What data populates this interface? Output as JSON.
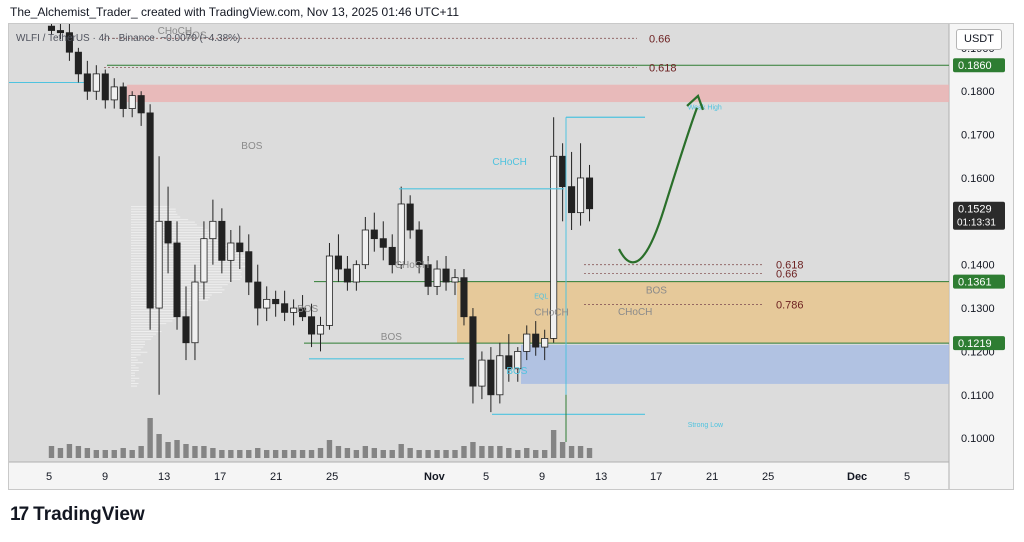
{
  "header": {
    "text": "The_Alchemist_Trader_ created with TradingView.com, Nov 13, 2025 01:46 UTC+11"
  },
  "symbol": {
    "pair": "WLFI / TetherUS · 4h · Binance",
    "change": "−0.0070 (−4.38%)"
  },
  "currency_button": "USDT",
  "footer": {
    "logo_text": "TradingView",
    "logo_icon": "tradingview-logo-icon"
  },
  "colors": {
    "bg": "#dcdcdc",
    "candle": "#222222",
    "green_line": "#2e7d32",
    "fib_text": "#6b1f1f",
    "cyan": "#4fc3df",
    "supply_zone": "#eab4b4",
    "demand_orange": "#e8c58e",
    "demand_blue": "#a9bde3",
    "arrow": "#2a6f2a",
    "volume": "#4a4a4a"
  },
  "chart_data": {
    "type": "candlestick",
    "ylim": [
      0.0945,
      0.1955
    ],
    "y_ticks": [
      "0.1900",
      "0.1800",
      "0.1700",
      "0.1600",
      "0.1400",
      "0.1300",
      "0.1200",
      "0.1100",
      "0.1000"
    ],
    "x_ticks": [
      "5",
      "9",
      "13",
      "17",
      "21",
      "25",
      "Nov",
      "5",
      "9",
      "13",
      "17",
      "21",
      "25",
      "Dec",
      "5"
    ],
    "price_labels": [
      {
        "text": "0.1860",
        "price": 0.186,
        "style": "green"
      },
      {
        "text": "0.1529",
        "sub": "01:13:31",
        "price": 0.1529,
        "style": "dark"
      },
      {
        "text": "0.1361",
        "price": 0.1361,
        "style": "green"
      },
      {
        "text": "0.1219",
        "price": 0.1219,
        "style": "green"
      }
    ],
    "fib_levels": [
      {
        "label": "0.66",
        "price": 0.1922
      },
      {
        "label": "0.618",
        "price": 0.1855
      },
      {
        "label": "0.618",
        "price": 0.14
      },
      {
        "label": "0.66",
        "price": 0.138
      },
      {
        "label": "0.786",
        "price": 0.1308
      }
    ],
    "annotations": [
      {
        "text": "CHoCH",
        "x": "2025-10-29",
        "price": 0.163
      },
      {
        "text": "CHoCH",
        "x": "2025-10-22",
        "price": 0.1392
      },
      {
        "text": "BOS",
        "x": "2025-10-15",
        "price": 0.1291
      },
      {
        "text": "BOS",
        "x": "2025-10-21",
        "price": 0.1226
      },
      {
        "text": "BOS",
        "x": "2025-10-30",
        "price": 0.1148
      },
      {
        "text": "EQL",
        "x": "2025-11-01",
        "price": 0.1322
      },
      {
        "text": "CHoCH",
        "x": "2025-11-01",
        "price": 0.1283
      },
      {
        "text": "CHoCH",
        "x": "2025-11-07",
        "price": 0.1284
      },
      {
        "text": "BOS",
        "x": "2025-11-09",
        "price": 0.1334
      },
      {
        "text": "Weak High",
        "x": "2025-11-12",
        "price": 0.1758
      },
      {
        "text": "Strong Low",
        "x": "2025-11-12",
        "price": 0.1026
      },
      {
        "text": "BOS",
        "x": "2025-10-11",
        "price": 0.1667
      },
      {
        "text": "BOS",
        "x": "2025-10-07",
        "price": 0.1922
      },
      {
        "text": "CHoCH",
        "x": "2025-10-05",
        "price": 0.1932
      }
    ],
    "zones": [
      {
        "name": "supply",
        "from": 0.1775,
        "to": 0.1815
      },
      {
        "name": "demand-orange",
        "from": 0.1219,
        "to": 0.1361
      },
      {
        "name": "demand-blue",
        "from": 0.1125,
        "to": 0.1215
      }
    ],
    "horizontal_lines": [
      {
        "price": 0.186,
        "color": "green"
      },
      {
        "price": 0.1361,
        "color": "green"
      },
      {
        "price": 0.1219,
        "color": "green"
      },
      {
        "price": 0.182,
        "color": "cyan"
      }
    ],
    "candles": [
      [
        0.195,
        0.196,
        0.193,
        0.194
      ],
      [
        0.194,
        0.1955,
        0.192,
        0.1935
      ],
      [
        0.1935,
        0.1955,
        0.187,
        0.189
      ],
      [
        0.189,
        0.19,
        0.182,
        0.184
      ],
      [
        0.184,
        0.187,
        0.178,
        0.18
      ],
      [
        0.18,
        0.186,
        0.178,
        0.184
      ],
      [
        0.184,
        0.185,
        0.176,
        0.178
      ],
      [
        0.178,
        0.183,
        0.176,
        0.181
      ],
      [
        0.181,
        0.182,
        0.174,
        0.176
      ],
      [
        0.176,
        0.18,
        0.174,
        0.179
      ],
      [
        0.179,
        0.18,
        0.172,
        0.175
      ],
      [
        0.175,
        0.177,
        0.125,
        0.13
      ],
      [
        0.13,
        0.165,
        0.11,
        0.15
      ],
      [
        0.15,
        0.158,
        0.138,
        0.145
      ],
      [
        0.145,
        0.15,
        0.125,
        0.128
      ],
      [
        0.128,
        0.135,
        0.118,
        0.122
      ],
      [
        0.122,
        0.14,
        0.118,
        0.136
      ],
      [
        0.136,
        0.15,
        0.132,
        0.146
      ],
      [
        0.146,
        0.155,
        0.14,
        0.15
      ],
      [
        0.15,
        0.153,
        0.138,
        0.141
      ],
      [
        0.141,
        0.148,
        0.136,
        0.145
      ],
      [
        0.145,
        0.149,
        0.139,
        0.143
      ],
      [
        0.143,
        0.147,
        0.133,
        0.136
      ],
      [
        0.136,
        0.14,
        0.126,
        0.13
      ],
      [
        0.13,
        0.135,
        0.127,
        0.132
      ],
      [
        0.132,
        0.134,
        0.128,
        0.131
      ],
      [
        0.131,
        0.134,
        0.127,
        0.129
      ],
      [
        0.129,
        0.132,
        0.126,
        0.13
      ],
      [
        0.13,
        0.133,
        0.127,
        0.128
      ],
      [
        0.128,
        0.131,
        0.121,
        0.124
      ],
      [
        0.124,
        0.128,
        0.12,
        0.126
      ],
      [
        0.126,
        0.145,
        0.125,
        0.142
      ],
      [
        0.142,
        0.147,
        0.136,
        0.139
      ],
      [
        0.139,
        0.142,
        0.134,
        0.136
      ],
      [
        0.136,
        0.141,
        0.134,
        0.14
      ],
      [
        0.14,
        0.151,
        0.139,
        0.148
      ],
      [
        0.148,
        0.152,
        0.143,
        0.146
      ],
      [
        0.146,
        0.15,
        0.141,
        0.144
      ],
      [
        0.144,
        0.147,
        0.138,
        0.14
      ],
      [
        0.14,
        0.158,
        0.139,
        0.154
      ],
      [
        0.154,
        0.156,
        0.146,
        0.148
      ],
      [
        0.148,
        0.15,
        0.138,
        0.14
      ],
      [
        0.14,
        0.142,
        0.133,
        0.135
      ],
      [
        0.135,
        0.141,
        0.133,
        0.139
      ],
      [
        0.139,
        0.142,
        0.134,
        0.136
      ],
      [
        0.136,
        0.139,
        0.133,
        0.137
      ],
      [
        0.137,
        0.139,
        0.126,
        0.128
      ],
      [
        0.128,
        0.13,
        0.108,
        0.112
      ],
      [
        0.112,
        0.12,
        0.109,
        0.118
      ],
      [
        0.118,
        0.121,
        0.106,
        0.11
      ],
      [
        0.11,
        0.122,
        0.108,
        0.119
      ],
      [
        0.119,
        0.124,
        0.113,
        0.116
      ],
      [
        0.116,
        0.121,
        0.113,
        0.12
      ],
      [
        0.12,
        0.126,
        0.118,
        0.124
      ],
      [
        0.124,
        0.127,
        0.119,
        0.121
      ],
      [
        0.121,
        0.125,
        0.118,
        0.123
      ],
      [
        0.123,
        0.174,
        0.122,
        0.165
      ],
      [
        0.165,
        0.168,
        0.15,
        0.158
      ],
      [
        0.158,
        0.166,
        0.148,
        0.152
      ],
      [
        0.152,
        0.168,
        0.149,
        0.16
      ],
      [
        0.16,
        0.163,
        0.15,
        0.1529
      ]
    ],
    "volumes": [
      0.3,
      0.25,
      0.35,
      0.3,
      0.25,
      0.2,
      0.2,
      0.2,
      0.25,
      0.2,
      0.3,
      1.0,
      0.6,
      0.4,
      0.45,
      0.35,
      0.3,
      0.3,
      0.25,
      0.2,
      0.2,
      0.2,
      0.2,
      0.25,
      0.2,
      0.2,
      0.2,
      0.2,
      0.2,
      0.2,
      0.25,
      0.45,
      0.3,
      0.25,
      0.2,
      0.3,
      0.25,
      0.2,
      0.2,
      0.35,
      0.25,
      0.2,
      0.2,
      0.2,
      0.2,
      0.2,
      0.3,
      0.4,
      0.3,
      0.3,
      0.3,
      0.25,
      0.2,
      0.25,
      0.2,
      0.2,
      0.7,
      0.4,
      0.3,
      0.3,
      0.25
    ],
    "arrow": {
      "from_price": 0.139,
      "to_price": 0.178
    }
  }
}
